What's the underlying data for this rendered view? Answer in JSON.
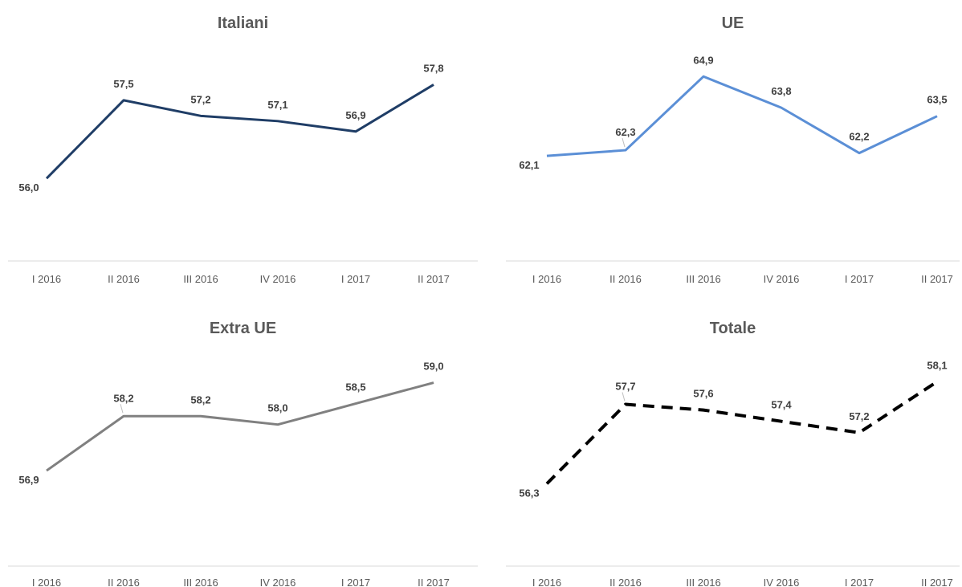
{
  "chart_data": [
    {
      "type": "line",
      "title": "Italiani",
      "categories": [
        "I 2016",
        "II 2016",
        "III 2016",
        "IV 2016",
        "I 2017",
        "II 2017"
      ],
      "values": [
        56.0,
        57.5,
        57.2,
        57.1,
        56.9,
        57.8
      ],
      "data_labels": [
        "56,0",
        "57,5",
        "57,2",
        "57,1",
        "56,9",
        "57,8"
      ],
      "ylim": [
        54.8,
        58.5
      ],
      "line_color": "#1f3d66",
      "line_style": "solid",
      "grid": false
    },
    {
      "type": "line",
      "title": "UE",
      "categories": [
        "I 2016",
        "II 2016",
        "III 2016",
        "IV 2016",
        "I 2017",
        "II 2017"
      ],
      "values": [
        62.1,
        62.3,
        64.9,
        63.8,
        62.2,
        63.5
      ],
      "data_labels": [
        "62,1",
        "62,3",
        "64,9",
        "63,8",
        "62,2",
        "63,5"
      ],
      "ylim": [
        59.1,
        65.9
      ],
      "line_color": "#5b8fd6",
      "line_style": "solid",
      "grid": false
    },
    {
      "type": "line",
      "title": "Extra UE",
      "categories": [
        "I 2016",
        "II 2016",
        "III 2016",
        "IV 2016",
        "I 2017",
        "II 2017"
      ],
      "values": [
        56.9,
        58.2,
        58.2,
        58.0,
        58.5,
        59.0
      ],
      "data_labels": [
        "56,9",
        "58,2",
        "58,2",
        "58,0",
        "58,5",
        "59,0"
      ],
      "ylim": [
        55.1,
        59.7
      ],
      "line_color": "#808080",
      "line_style": "solid",
      "grid": false
    },
    {
      "type": "line",
      "title": "Totale",
      "categories": [
        "I 2016",
        "II 2016",
        "III 2016",
        "IV 2016",
        "I 2017",
        "II 2017"
      ],
      "values": [
        56.3,
        57.7,
        57.6,
        57.4,
        57.2,
        58.1
      ],
      "data_labels": [
        "56,3",
        "57,7",
        "57,6",
        "57,4",
        "57,2",
        "58,1"
      ],
      "ylim": [
        55.2,
        58.6
      ],
      "line_color": "#000000",
      "line_style": "dashed",
      "grid": false
    }
  ]
}
